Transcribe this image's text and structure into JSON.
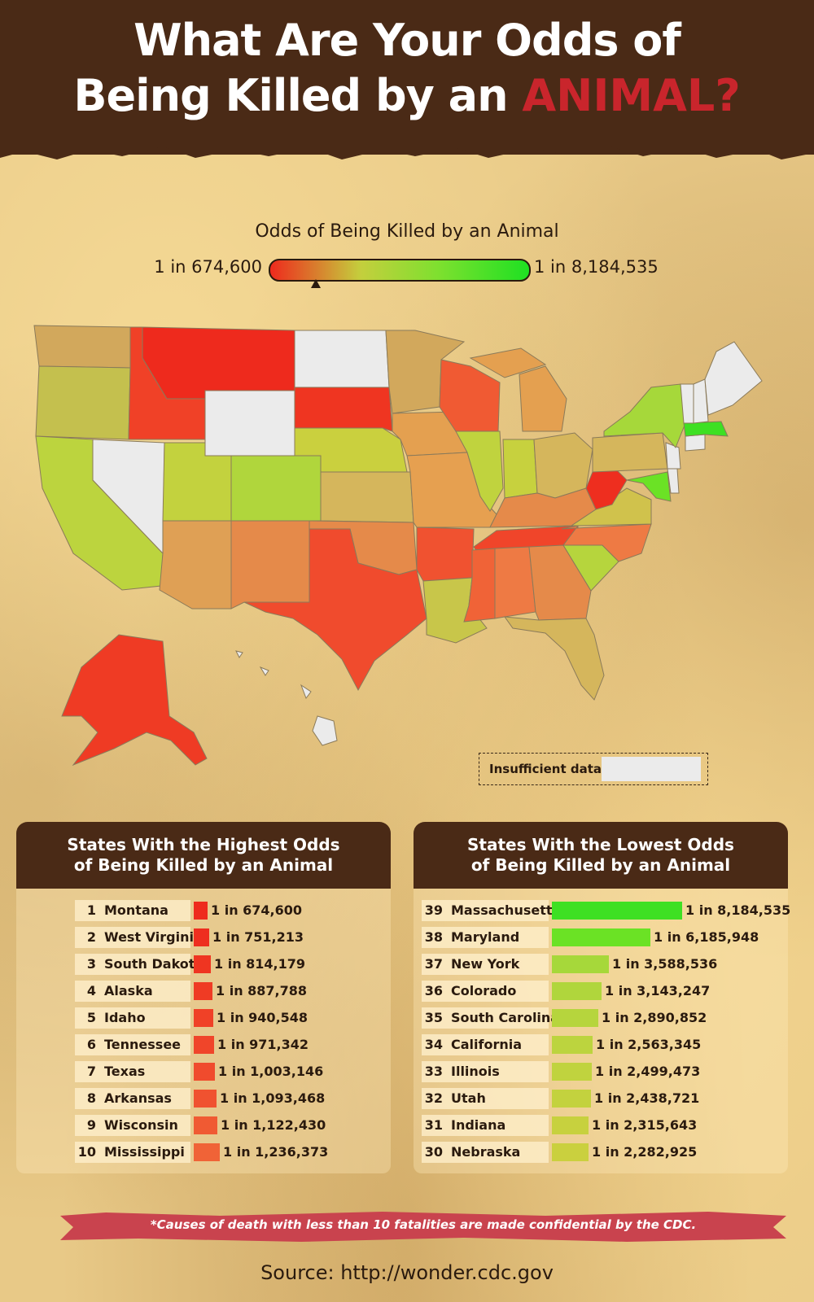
{
  "header": {
    "title_line1": "What Are Your Odds of",
    "title_line2_start": "Being Killed by an",
    "title_accent": "ANIMAL?"
  },
  "legend": {
    "title": "Odds of Being Killed by an Animal",
    "min_label": "1 in 674,600",
    "max_label": "1 in 8,184,535",
    "insufficient_label": "Insufficient data"
  },
  "colors": {
    "header_brown": "#4a2a16",
    "accent_red": "#c9252c",
    "insufficient_grey": "#ebebeb",
    "footnote_band": "#c9434e"
  },
  "highest": {
    "title_line1": "States With the Highest Odds",
    "title_line2": "of Being Killed by an Animal",
    "rows": [
      {
        "rank": "1",
        "state": "Montana",
        "odds": "1 in 674,600",
        "value": 674600,
        "color": "#ee2a1d"
      },
      {
        "rank": "2",
        "state": "West Virginia",
        "odds": "1 in 751,213",
        "value": 751213,
        "color": "#ee2e1f"
      },
      {
        "rank": "3",
        "state": "South Dakota",
        "odds": "1 in 814,179",
        "value": 814179,
        "color": "#ef3521"
      },
      {
        "rank": "4",
        "state": "Alaska",
        "odds": "1 in 887,788",
        "value": 887788,
        "color": "#ef3b24"
      },
      {
        "rank": "5",
        "state": "Idaho",
        "odds": "1 in 940,548",
        "value": 940548,
        "color": "#f04127"
      },
      {
        "rank": "6",
        "state": "Tennessee",
        "odds": "1 in 971,342",
        "value": 971342,
        "color": "#f0452a"
      },
      {
        "rank": "7",
        "state": "Texas",
        "odds": "1 in 1,003,146",
        "value": 1003146,
        "color": "#f04b2d"
      },
      {
        "rank": "8",
        "state": "Arkansas",
        "odds": "1 in 1,093,468",
        "value": 1093468,
        "color": "#f05230"
      },
      {
        "rank": "9",
        "state": "Wisconsin",
        "odds": "1 in 1,122,430",
        "value": 1122430,
        "color": "#f05a33"
      },
      {
        "rank": "10",
        "state": "Mississippi",
        "odds": "1 in 1,236,373",
        "value": 1236373,
        "color": "#f06337"
      }
    ]
  },
  "lowest": {
    "title_line1": "States With the Lowest Odds",
    "title_line2": "of Being Killed by an Animal",
    "rows": [
      {
        "rank": "39",
        "state": "Massachusetts",
        "odds": "1 in 8,184,535",
        "value": 8184535,
        "color": "#3ee023"
      },
      {
        "rank": "38",
        "state": "Maryland",
        "odds": "1 in 6,185,948",
        "value": 6185948,
        "color": "#6be225"
      },
      {
        "rank": "37",
        "state": "New York",
        "odds": "1 in 3,588,536",
        "value": 3588536,
        "color": "#a6d83a"
      },
      {
        "rank": "36",
        "state": "Colorado",
        "odds": "1 in 3,143,247",
        "value": 3143247,
        "color": "#b0d63c"
      },
      {
        "rank": "35",
        "state": "South Carolina",
        "odds": "1 in 2,890,852",
        "value": 2890852,
        "color": "#b6d53d"
      },
      {
        "rank": "34",
        "state": "California",
        "odds": "1 in 2,563,345",
        "value": 2563345,
        "color": "#bcd43e"
      },
      {
        "rank": "33",
        "state": "Illinois",
        "odds": "1 in 2,499,473",
        "value": 2499473,
        "color": "#c0d33e"
      },
      {
        "rank": "32",
        "state": "Utah",
        "odds": "1 in 2,438,721",
        "value": 2438721,
        "color": "#c3d23e"
      },
      {
        "rank": "31",
        "state": "Indiana",
        "odds": "1 in 2,315,643",
        "value": 2315643,
        "color": "#c7d13e"
      },
      {
        "rank": "30",
        "state": "Nebraska",
        "odds": "1 in 2,282,925",
        "value": 2282925,
        "color": "#cad03e"
      }
    ]
  },
  "footnote": "*Causes of death with less than 10 fatalities are made confidential by the CDC.",
  "source": "Source: http://wonder.cdc.gov"
}
